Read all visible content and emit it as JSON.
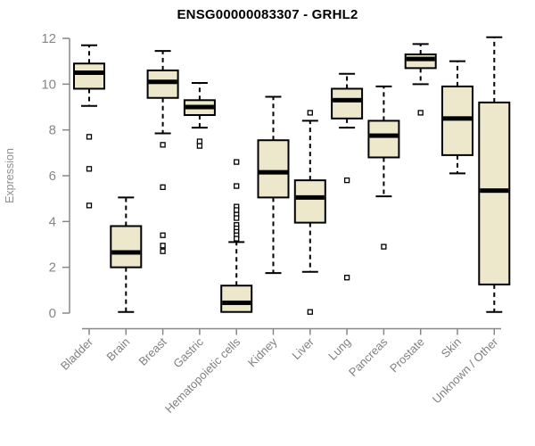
{
  "chart_data": {
    "type": "boxplot",
    "title": "ENSG00000083307 - GRHL2",
    "ylabel": "Expression",
    "xlabel": "",
    "ylim": [
      0,
      12.3
    ],
    "yticks": [
      0,
      2,
      4,
      6,
      8,
      10,
      12
    ],
    "grid": false,
    "legend": "none",
    "categories": [
      "Bladder",
      "Brain",
      "Breast",
      "Gastric",
      "Hematopoietic cells",
      "Kidney",
      "Liver",
      "Lung",
      "Pancreas",
      "Prostate",
      "Skin",
      "Unknown / Other"
    ],
    "series": [
      {
        "category": "Bladder",
        "whisker_low": 9.05,
        "q1": 9.8,
        "median": 10.5,
        "q3": 10.9,
        "whisker_high": 11.7,
        "outliers": [
          7.7,
          6.3,
          4.7
        ]
      },
      {
        "category": "Brain",
        "whisker_low": 0.05,
        "q1": 2.0,
        "median": 2.65,
        "q3": 3.8,
        "whisker_high": 5.05,
        "outliers": []
      },
      {
        "category": "Breast",
        "whisker_low": 7.85,
        "q1": 9.4,
        "median": 10.1,
        "q3": 10.6,
        "whisker_high": 11.45,
        "outliers": [
          7.35,
          5.5,
          3.4,
          2.95,
          2.7
        ]
      },
      {
        "category": "Gastric",
        "whisker_low": 8.1,
        "q1": 8.65,
        "median": 9.0,
        "q3": 9.3,
        "whisker_high": 10.05,
        "outliers": [
          7.5,
          7.3
        ]
      },
      {
        "category": "Hematopoietic cells",
        "whisker_low": 0.05,
        "q1": 0.05,
        "median": 0.45,
        "q3": 1.2,
        "whisker_high": 3.1,
        "outliers": [
          6.6,
          5.55,
          4.65,
          4.5,
          4.3,
          4.15,
          3.85,
          3.7,
          3.55,
          3.4,
          3.25
        ]
      },
      {
        "category": "Kidney",
        "whisker_low": 1.75,
        "q1": 5.05,
        "median": 6.15,
        "q3": 7.55,
        "whisker_high": 9.45,
        "outliers": []
      },
      {
        "category": "Liver",
        "whisker_low": 1.8,
        "q1": 3.95,
        "median": 5.05,
        "q3": 5.8,
        "whisker_high": 8.4,
        "outliers": [
          8.75,
          0.05
        ]
      },
      {
        "category": "Lung",
        "whisker_low": 8.1,
        "q1": 8.5,
        "median": 9.3,
        "q3": 9.8,
        "whisker_high": 10.45,
        "outliers": [
          5.8,
          1.55
        ]
      },
      {
        "category": "Pancreas",
        "whisker_low": 5.1,
        "q1": 6.8,
        "median": 7.75,
        "q3": 8.4,
        "whisker_high": 9.9,
        "outliers": [
          2.9
        ]
      },
      {
        "category": "Prostate",
        "whisker_low": 10.0,
        "q1": 10.7,
        "median": 11.1,
        "q3": 11.3,
        "whisker_high": 11.75,
        "outliers": [
          8.75
        ]
      },
      {
        "category": "Skin",
        "whisker_low": 6.1,
        "q1": 6.9,
        "median": 8.5,
        "q3": 9.9,
        "whisker_high": 11.0,
        "outliers": []
      },
      {
        "category": "Unknown / Other",
        "whisker_low": 0.05,
        "q1": 1.25,
        "median": 5.35,
        "q3": 9.2,
        "whisker_high": 12.05,
        "outliers": []
      }
    ],
    "colors": {
      "box_fill": "#EDE7CC",
      "box_stroke": "#000000",
      "median": "#000000",
      "whisker": "#000000",
      "outlier_stroke": "#000000",
      "outlier_fill": "#ffffff",
      "axis": "#878787",
      "tick_label": "#878787",
      "category_label": "#808080",
      "title": "#000000",
      "background": "#ffffff"
    }
  }
}
